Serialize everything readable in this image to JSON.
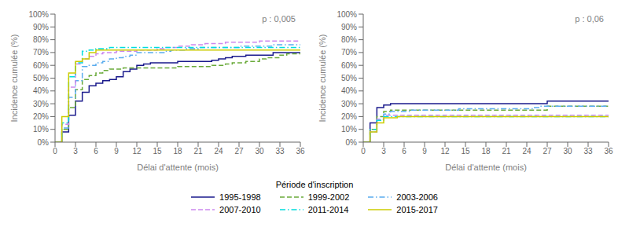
{
  "chart_data": [
    {
      "type": "line",
      "line_style": "step",
      "xlabel": "Délai d'attente (mois)",
      "ylabel": "Incidence cumulée (%)",
      "annotations": [
        "p : 0,005"
      ],
      "legend": "bottom",
      "legend_title": "Période d'inscription",
      "grid": false,
      "xlim": [
        0,
        36
      ],
      "ylim": [
        0,
        100
      ],
      "xticks": [
        0,
        3,
        6,
        9,
        12,
        15,
        18,
        21,
        24,
        27,
        30,
        33,
        36
      ],
      "yticks": [
        {
          "value": 0,
          "label": "0%"
        },
        {
          "value": 10,
          "label": "10%"
        },
        {
          "value": 20,
          "label": "20%"
        },
        {
          "value": 30,
          "label": "30%"
        },
        {
          "value": 40,
          "label": "40%"
        },
        {
          "value": 50,
          "label": "50%"
        },
        {
          "value": 60,
          "label": "60%"
        },
        {
          "value": 70,
          "label": "70%"
        },
        {
          "value": 80,
          "label": "80%"
        },
        {
          "value": 90,
          "label": "90%"
        },
        {
          "value": 100,
          "label": "100%"
        }
      ],
      "x": [
        0,
        1,
        2,
        3,
        4,
        5,
        6,
        7,
        8,
        9,
        10,
        11,
        12,
        13,
        14,
        15,
        16,
        17,
        18,
        19,
        20,
        21,
        22,
        23,
        24,
        25,
        26,
        27,
        28,
        29,
        30,
        31,
        32,
        33,
        34,
        35,
        36
      ],
      "series": [
        {
          "name": "1995-1998",
          "color": "#1a1a8c",
          "line_style": "solid",
          "values": [
            0,
            8,
            21,
            32,
            39,
            44,
            46,
            48,
            49,
            51,
            55,
            57,
            60,
            61,
            62,
            62,
            62,
            62,
            63,
            63,
            63,
            63,
            63,
            64,
            65,
            66,
            67,
            67,
            68,
            68,
            68,
            68,
            70,
            70,
            70,
            70,
            70
          ]
        },
        {
          "name": "1999-2002",
          "color": "#6aaa3a",
          "line_style": "dashed",
          "values": [
            0,
            10,
            27,
            41,
            49,
            52,
            54,
            56,
            57,
            57,
            58,
            58,
            58,
            58,
            58,
            58,
            58,
            58,
            59,
            59,
            59,
            59,
            59,
            60,
            60,
            61,
            62,
            62,
            63,
            63,
            65,
            66,
            66,
            68,
            69,
            69,
            70
          ]
        },
        {
          "name": "2003-2006",
          "color": "#5aacee",
          "line_style": "dashdot",
          "values": [
            0,
            11,
            35,
            48,
            59,
            60,
            62,
            63,
            65,
            66,
            67,
            68,
            70,
            70,
            70,
            70,
            71,
            72,
            72,
            73,
            73,
            74,
            74,
            74,
            74,
            74,
            74,
            75,
            75,
            75,
            75,
            75,
            76,
            76,
            76,
            76,
            76
          ]
        },
        {
          "name": "2007-2010",
          "color": "#cc88ee",
          "line_style": "dashed",
          "values": [
            0,
            14,
            43,
            61,
            65,
            67,
            69,
            70,
            70,
            71,
            71,
            71,
            72,
            72,
            72,
            73,
            74,
            74,
            75,
            75,
            76,
            76,
            77,
            77,
            77,
            78,
            78,
            78,
            78,
            78,
            79,
            79,
            79,
            79,
            79,
            79,
            79
          ]
        },
        {
          "name": "2011-2014",
          "color": "#00dddd",
          "line_style": "dashdot",
          "values": [
            0,
            15,
            51,
            62,
            71,
            72,
            73,
            73,
            74,
            74,
            74,
            74,
            74,
            74,
            74,
            74,
            74,
            74,
            74,
            74,
            74,
            74,
            74,
            74,
            74,
            74,
            74,
            74,
            74,
            74,
            74,
            74,
            74,
            74,
            74,
            74,
            74
          ]
        },
        {
          "name": "2015-2017",
          "color": "#cccc00",
          "line_style": "solid",
          "values": [
            0,
            20,
            54,
            63,
            65,
            70,
            72,
            72,
            72,
            72,
            72,
            72,
            72,
            72,
            72,
            72,
            72,
            72,
            72,
            72,
            72,
            72,
            72,
            72,
            72,
            72,
            72,
            72,
            72,
            72,
            72,
            72,
            72,
            72,
            72,
            72,
            72
          ]
        }
      ]
    },
    {
      "type": "line",
      "line_style": "step",
      "xlabel": "Délai d'attente (mois)",
      "ylabel": "Incidence cumulée (%)",
      "annotations": [
        "p : 0,06"
      ],
      "grid": false,
      "xlim": [
        0,
        36
      ],
      "ylim": [
        0,
        100
      ],
      "xticks": [
        0,
        3,
        6,
        9,
        12,
        15,
        18,
        21,
        24,
        27,
        30,
        33,
        36
      ],
      "yticks": [
        {
          "value": 0,
          "label": "0%"
        },
        {
          "value": 10,
          "label": "10%"
        },
        {
          "value": 20,
          "label": "20%"
        },
        {
          "value": 30,
          "label": "30%"
        },
        {
          "value": 40,
          "label": "40%"
        },
        {
          "value": 50,
          "label": "50%"
        },
        {
          "value": 60,
          "label": "60%"
        },
        {
          "value": 70,
          "label": "70%"
        },
        {
          "value": 80,
          "label": "80%"
        },
        {
          "value": 90,
          "label": "90%"
        },
        {
          "value": 100,
          "label": "100%"
        }
      ],
      "x": [
        0,
        1,
        2,
        3,
        4,
        5,
        6,
        7,
        8,
        9,
        10,
        11,
        12,
        13,
        14,
        15,
        16,
        17,
        18,
        19,
        20,
        21,
        22,
        23,
        24,
        25,
        26,
        27,
        28,
        29,
        30,
        31,
        32,
        33,
        34,
        35,
        36
      ],
      "series": [
        {
          "name": "1995-1998",
          "color": "#1a1a8c",
          "line_style": "solid",
          "values": [
            0,
            15,
            27,
            29,
            30,
            30,
            30,
            30,
            30,
            30,
            30,
            30,
            30,
            30,
            30,
            30,
            30,
            30,
            30,
            30,
            30,
            30,
            30,
            30,
            30,
            30,
            30,
            32,
            32,
            32,
            32,
            32,
            32,
            32,
            32,
            32,
            32
          ]
        },
        {
          "name": "1999-2002",
          "color": "#6aaa3a",
          "line_style": "dashed",
          "values": [
            0,
            10,
            20,
            24,
            25,
            25,
            25,
            25,
            25,
            25,
            25,
            25,
            25,
            25,
            25,
            25,
            25,
            25,
            25,
            25,
            25,
            25,
            25,
            25,
            25,
            25,
            25,
            28,
            28,
            28,
            28,
            28,
            28,
            28,
            28,
            28,
            28
          ]
        },
        {
          "name": "2003-2006",
          "color": "#5aacee",
          "line_style": "dashdot",
          "values": [
            0,
            8,
            17,
            22,
            24,
            24,
            24,
            25,
            25,
            25,
            25,
            25,
            25,
            25,
            26,
            26,
            26,
            26,
            26,
            26,
            26,
            26,
            26,
            26,
            26,
            27,
            28,
            28,
            28,
            28,
            28,
            28,
            28,
            28,
            28,
            28,
            28
          ]
        },
        {
          "name": "2007-2010",
          "color": "#cc88ee",
          "line_style": "dashed",
          "values": [
            0,
            8,
            18,
            21,
            21,
            21,
            21,
            21,
            21,
            21,
            21,
            21,
            21,
            21,
            21,
            21,
            21,
            21,
            21,
            21,
            21,
            21,
            21,
            21,
            21,
            21,
            21,
            21,
            21,
            21,
            21,
            21,
            21,
            21,
            21,
            21,
            21
          ]
        },
        {
          "name": "2011-2014",
          "color": "#00dddd",
          "line_style": "dashdot",
          "values": [
            0,
            10,
            17,
            20,
            20,
            20,
            20,
            20,
            20,
            20,
            20,
            20,
            20,
            20,
            20,
            20,
            20,
            20,
            20,
            20,
            20,
            20,
            20,
            20,
            20,
            20,
            20,
            20,
            20,
            20,
            20,
            20,
            20,
            20,
            20,
            20,
            20
          ]
        },
        {
          "name": "2015-2017",
          "color": "#cccc00",
          "line_style": "solid",
          "values": [
            0,
            8,
            15,
            19,
            19,
            20,
            20,
            20,
            20,
            20,
            20,
            20,
            20,
            20,
            20,
            20,
            20,
            20,
            20,
            20,
            20,
            20,
            20,
            20,
            20,
            20,
            20,
            20,
            20,
            20,
            20,
            20,
            20,
            20,
            20,
            20,
            20
          ]
        }
      ]
    }
  ]
}
